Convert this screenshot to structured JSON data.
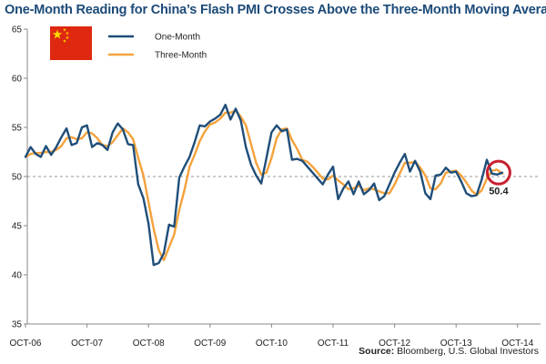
{
  "chart_data": {
    "type": "line",
    "title": "One-Month Reading for China’s Flash PMI Crosses Above the Three-Month Moving Average",
    "xlabel": "",
    "ylabel": "",
    "ylim": [
      35,
      65
    ],
    "yticks": [
      35,
      40,
      45,
      50,
      55,
      60,
      65
    ],
    "xtick_labels": [
      "OCT-06",
      "OCT-07",
      "OCT-08",
      "OCT-09",
      "OCT-10",
      "OCT-11",
      "OCT-12",
      "OCT-13",
      "OCT-14"
    ],
    "reference_line": 50,
    "grid": false,
    "legend_position": "top-left",
    "series": [
      {
        "name": "One-Month",
        "color": "#1f4e79",
        "values": [
          52.0,
          53.0,
          52.3,
          52.0,
          53.1,
          52.2,
          53.0,
          54.0,
          54.9,
          53.2,
          53.4,
          55.0,
          55.2,
          53.0,
          53.4,
          53.2,
          52.7,
          54.5,
          55.4,
          54.8,
          53.3,
          53.2,
          49.2,
          47.8,
          45.2,
          41.0,
          41.2,
          42.2,
          45.1,
          44.9,
          49.9,
          51.0,
          52.0,
          53.5,
          55.2,
          55.1,
          55.6,
          55.9,
          56.3,
          57.3,
          55.8,
          56.9,
          55.7,
          53.0,
          51.2,
          50.1,
          49.3,
          51.9,
          54.5,
          55.2,
          54.6,
          54.8,
          51.7,
          51.8,
          51.6,
          51.0,
          50.4,
          49.8,
          49.2,
          50.2,
          51.0,
          47.7,
          48.8,
          49.5,
          48.2,
          49.5,
          48.2,
          48.6,
          49.3,
          47.6,
          48.0,
          49.2,
          50.4,
          51.4,
          52.3,
          50.5,
          51.6,
          50.5,
          48.3,
          47.7,
          50.1,
          50.2,
          50.9,
          50.4,
          50.5,
          49.5,
          48.3,
          48.0,
          48.1,
          49.7,
          51.7,
          50.3,
          50.2,
          50.4
        ]
      },
      {
        "name": "Three-Month",
        "color": "#f4a23c",
        "values": [
          52.0,
          52.3,
          52.4,
          52.4,
          52.5,
          52.5,
          52.7,
          53.1,
          53.9,
          54.0,
          53.8,
          53.9,
          54.5,
          54.4,
          53.9,
          53.2,
          53.1,
          53.5,
          54.2,
          54.9,
          54.5,
          53.8,
          51.9,
          50.1,
          47.4,
          44.7,
          42.5,
          41.5,
          42.8,
          44.1,
          46.6,
          48.6,
          51.0,
          52.2,
          53.6,
          54.6,
          55.3,
          55.5,
          55.9,
          56.5,
          56.5,
          56.7,
          56.1,
          55.2,
          53.3,
          51.4,
          50.2,
          50.4,
          51.9,
          53.9,
          54.8,
          54.9,
          53.7,
          52.8,
          51.7,
          51.5,
          51.0,
          50.4,
          49.8,
          49.7,
          50.1,
          49.6,
          49.2,
          48.7,
          48.8,
          49.1,
          48.6,
          48.8,
          48.7,
          48.5,
          48.3,
          48.3,
          49.2,
          50.3,
          51.4,
          51.4,
          51.5,
          50.9,
          50.1,
          48.8,
          48.7,
          49.3,
          50.4,
          50.5,
          50.6,
          50.1,
          49.4,
          48.6,
          48.1,
          48.6,
          49.8,
          50.6,
          50.7,
          50.3
        ]
      }
    ],
    "callout": {
      "label": "50.4",
      "value": 50.4
    }
  },
  "flag": {
    "name": "china-flag-icon",
    "background": "#de2910",
    "star_color": "#ffde00"
  },
  "source": {
    "bold": "Source:",
    "text": " Bloomberg, U.S. Global Investors"
  },
  "colors": {
    "title": "#1b4a78",
    "axis": "#888888",
    "reference": "#999999",
    "callout_ring": "#c8202f"
  }
}
